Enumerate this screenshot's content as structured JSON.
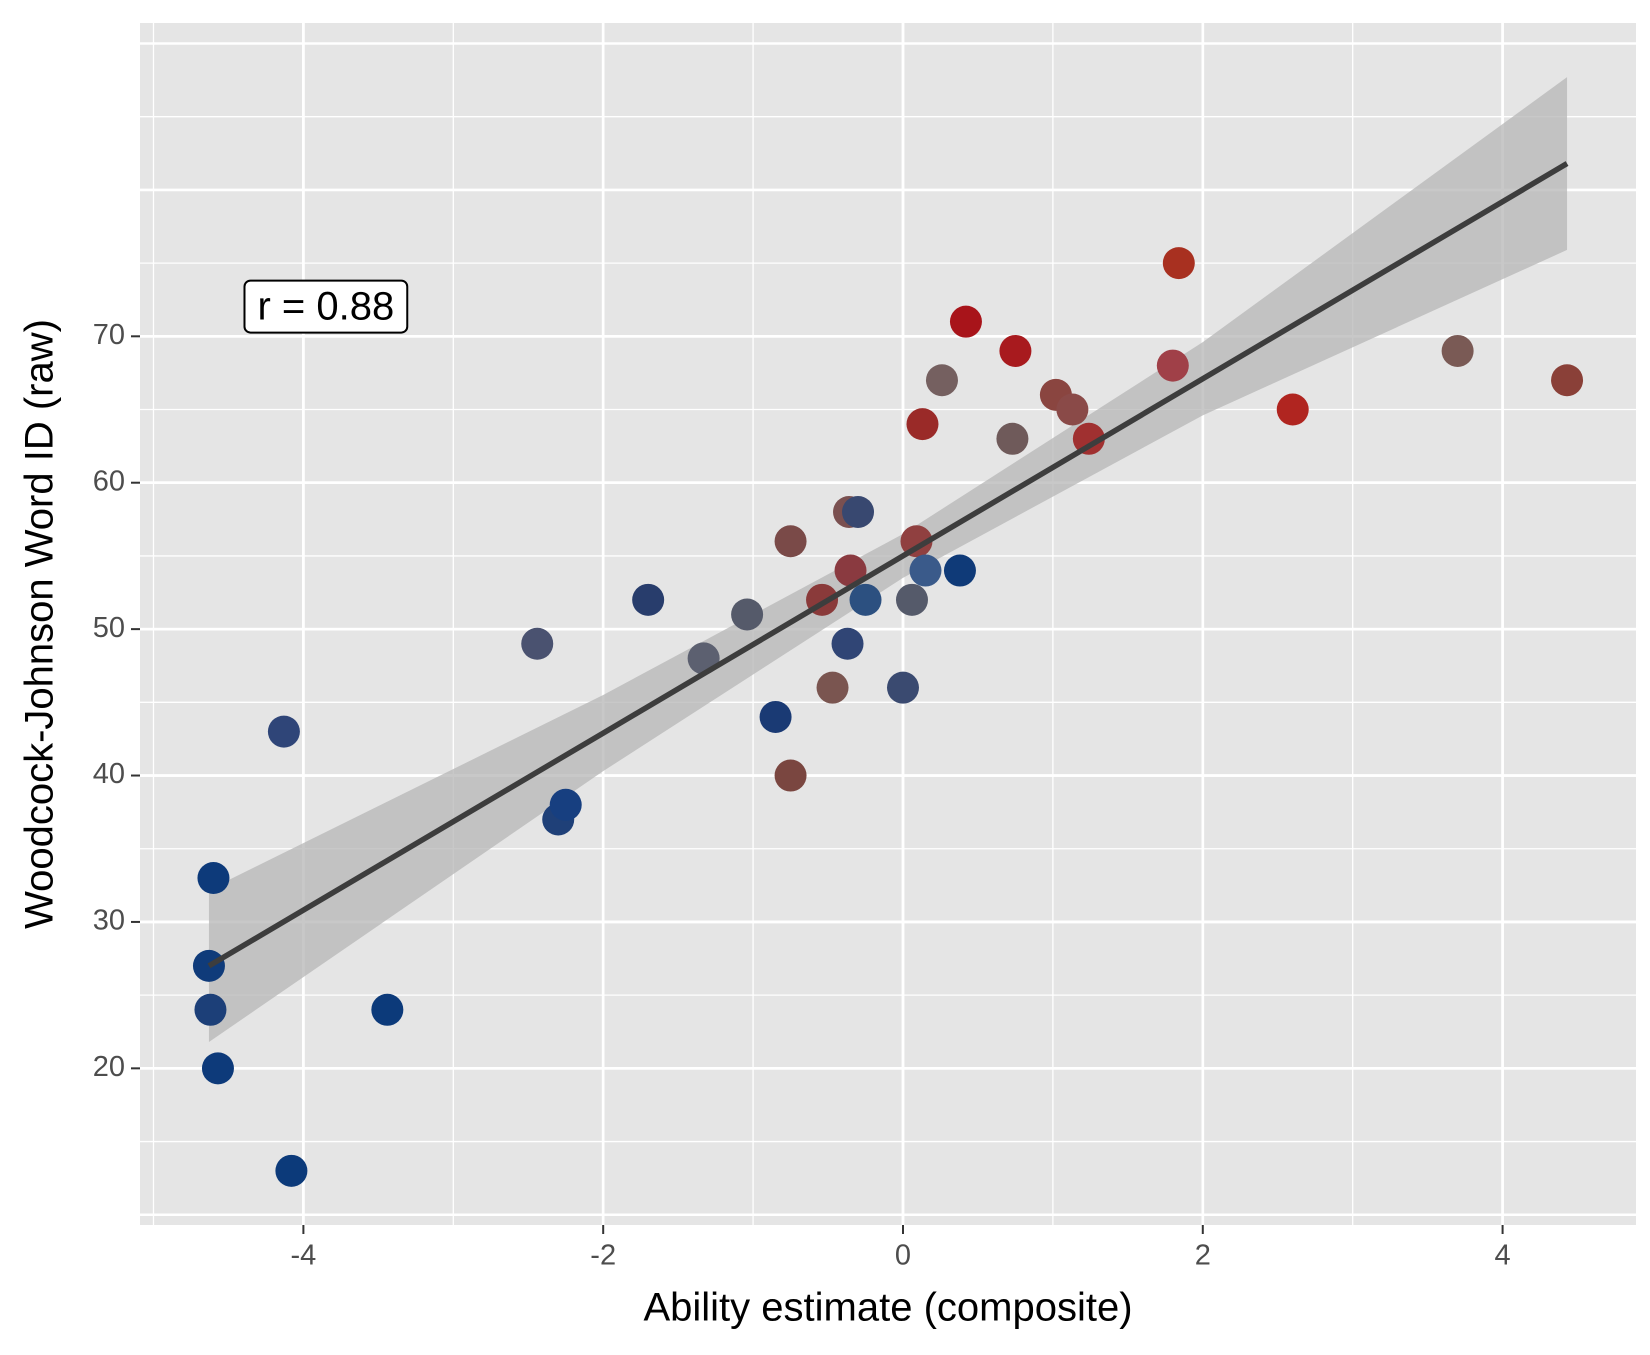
{
  "chart_data": {
    "type": "scatter",
    "x_label": "Ability estimate (composite)",
    "y_label": "Woodcock-Johnson Word ID (raw)",
    "annotation": {
      "text": "r = 0.88",
      "x": -3.85,
      "y": 72
    },
    "xlim": [
      -5.09,
      4.89
    ],
    "ylim": [
      9.3,
      91.4
    ],
    "xticks": [
      -4,
      -2,
      0,
      2,
      4
    ],
    "yticks": [
      20,
      30,
      40,
      50,
      60,
      70
    ],
    "grid": true,
    "series": [
      {
        "x": [
          -4.6,
          -4.63,
          -4.62,
          -4.57,
          -4.08,
          -4.13,
          -3.44,
          -2.44,
          -2.3,
          -2.25,
          -1.7,
          -1.33,
          -1.04,
          -0.85,
          -0.75,
          -0.75,
          -0.54,
          -0.47,
          -0.36,
          -0.3,
          -0.35,
          -0.37,
          -0.25,
          0,
          0.06,
          0.09,
          0.15,
          0.38,
          0.13,
          0.26,
          0.42,
          0.73,
          0.75,
          1.02,
          1.13,
          1.24,
          1.8,
          1.84,
          2.6,
          3.7,
          4.43
        ],
        "values": [
          33,
          27,
          24,
          20,
          13,
          43,
          24,
          49,
          37,
          38,
          52,
          48,
          51,
          44,
          56,
          40,
          52,
          46,
          58,
          58,
          54,
          49,
          52,
          46,
          52,
          56,
          54,
          54,
          64,
          67,
          71,
          63,
          69,
          66,
          65,
          63,
          68,
          75,
          65,
          69,
          67
        ],
        "colors": [
          "#0d3a7a",
          "#0f3b7a",
          "#1c3f78",
          "#0d3a7a",
          "#0c3a7a",
          "#2f4578",
          "#0c3a7a",
          "#4a5270",
          "#1f4078",
          "#173f80",
          "#283d6c",
          "#5c6070",
          "#555a6a",
          "#1a3a74",
          "#7a4a48",
          "#7a4640",
          "#8a3a3a",
          "#7a5550",
          "#7a5050",
          "#384870",
          "#8a3a40",
          "#304575",
          "#2c5080",
          "#3a4a70",
          "#555a6a",
          "#904040",
          "#3a5a8a",
          "#0f3a78",
          "#9a2a28",
          "#756060",
          "#a8141a",
          "#6f5a5a",
          "#a81a1e",
          "#8a4540",
          "#8a4a48",
          "#a03030",
          "#a04048",
          "#a83020",
          "#b02520",
          "#7a5a55",
          "#8a4038"
        ]
      }
    ],
    "fit": {
      "color": "#3d3d3d",
      "band_color": "#b5b5b5",
      "x": [
        -4.63,
        -2,
        0,
        2,
        4.43
      ],
      "values": [
        27,
        42.9,
        55,
        67.1,
        81.8
      ],
      "lower": [
        21.8,
        40.3,
        53.5,
        64.6,
        75.9
      ],
      "upper": [
        32.2,
        45.5,
        56.5,
        69.6,
        87.7
      ]
    }
  }
}
